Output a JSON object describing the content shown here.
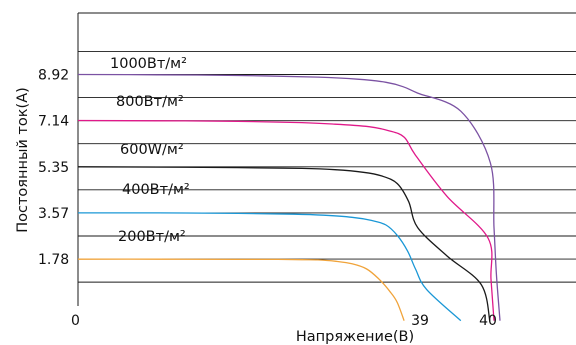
{
  "chart_data": {
    "type": "line",
    "title": "",
    "xlabel": "Напряжение(В)",
    "ylabel": "Постоянный ток(А)",
    "x_ticks": [
      "0",
      "39",
      "40"
    ],
    "y_ticks": [
      "1.78",
      "3.57",
      "5.35",
      "7.14",
      "8.92"
    ],
    "grid": true,
    "series": [
      {
        "name": "1000Вт/м²",
        "color": "#7b52a3",
        "x": [
          0,
          10,
          20,
          30,
          33.5,
          36,
          37.5,
          38.8,
          39.6,
          40.4,
          41.0,
          41.4,
          42.0
        ],
        "y": [
          8.92,
          8.91,
          8.88,
          8.82,
          8.74,
          8.62,
          8.45,
          8.2,
          7.5,
          5.5,
          3.0,
          1.2,
          -0.6
        ]
      },
      {
        "name": "800Вт/м²",
        "color": "#e0198a",
        "x": [
          0,
          10,
          20,
          28,
          31.5,
          34.5,
          36.2,
          37.6,
          38.6,
          39.4,
          40.0,
          40.5,
          41.0
        ],
        "y": [
          7.14,
          7.13,
          7.11,
          7.06,
          7.0,
          6.9,
          6.75,
          6.5,
          5.8,
          4.2,
          2.6,
          1.0,
          -0.6
        ]
      },
      {
        "name": "600W/м²",
        "color": "#1a1a1a",
        "x": [
          0,
          10,
          20,
          28,
          31.5,
          34.0,
          35.6,
          37.0,
          38.0,
          38.8,
          39.4,
          39.9,
          40.3
        ],
        "y": [
          5.35,
          5.34,
          5.32,
          5.29,
          5.24,
          5.14,
          5.0,
          4.7,
          4.0,
          3.0,
          1.9,
          0.8,
          -0.6
        ]
      },
      {
        "name": "400Вт/м²",
        "color": "#1a97d6",
        "x": [
          0,
          10,
          20,
          27,
          30.5,
          33.0,
          34.7,
          36.0,
          37.0,
          37.9,
          38.6,
          39.1,
          39.6
        ],
        "y": [
          3.57,
          3.57,
          3.55,
          3.52,
          3.48,
          3.4,
          3.28,
          3.1,
          2.7,
          2.1,
          1.4,
          0.6,
          -0.6
        ]
      },
      {
        "name": "200Вт/м²",
        "color": "#f0a33a",
        "x": [
          0,
          10,
          20,
          25,
          28.0,
          30.0,
          31.5,
          33.0,
          34.3,
          35.4,
          36.4,
          37.0,
          37.6
        ],
        "y": [
          1.78,
          1.78,
          1.77,
          1.77,
          1.76,
          1.75,
          1.7,
          1.6,
          1.4,
          1.0,
          0.5,
          0.1,
          -0.6
        ]
      }
    ]
  }
}
